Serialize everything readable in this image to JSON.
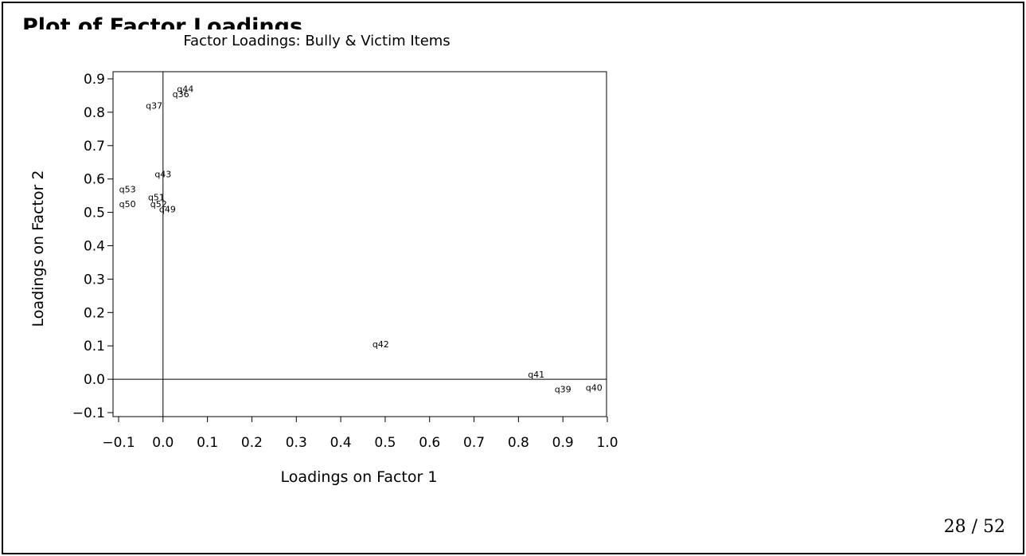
{
  "slide": {
    "page_number": "28 / 52"
  },
  "chart_data": {
    "type": "scatter",
    "title": "Factor Loadings:  Bully & Victim Items",
    "xlabel": "Loadings on Factor 1",
    "ylabel": "Loadings on Factor 2",
    "xlim": [
      -0.1,
      1.0
    ],
    "ylim": [
      -0.1,
      0.9
    ],
    "xticks": [
      "−0.1",
      "0.0",
      "0.1",
      "0.2",
      "0.3",
      "0.4",
      "0.5",
      "0.6",
      "0.7",
      "0.8",
      "0.9",
      "1.0"
    ],
    "yticks": [
      "−0.1",
      "0.0",
      "0.1",
      "0.2",
      "0.3",
      "0.4",
      "0.5",
      "0.6",
      "0.7",
      "0.8",
      "0.9"
    ],
    "reference_lines": {
      "x": 0.0,
      "y": 0.0
    },
    "grid": false,
    "points": [
      {
        "label": "q44",
        "x": 0.05,
        "y": 0.87
      },
      {
        "label": "q36",
        "x": 0.04,
        "y": 0.855
      },
      {
        "label": "q37",
        "x": -0.02,
        "y": 0.82
      },
      {
        "label": "q43",
        "x": 0.0,
        "y": 0.615
      },
      {
        "label": "q53",
        "x": -0.08,
        "y": 0.57
      },
      {
        "label": "q51",
        "x": -0.015,
        "y": 0.545
      },
      {
        "label": "q52",
        "x": -0.01,
        "y": 0.525
      },
      {
        "label": "q50",
        "x": -0.08,
        "y": 0.525
      },
      {
        "label": "q49",
        "x": 0.01,
        "y": 0.51
      },
      {
        "label": "q42",
        "x": 0.49,
        "y": 0.105
      },
      {
        "label": "q41",
        "x": 0.84,
        "y": 0.015
      },
      {
        "label": "q39",
        "x": 0.9,
        "y": -0.03
      },
      {
        "label": "q40",
        "x": 0.97,
        "y": -0.025
      }
    ]
  }
}
